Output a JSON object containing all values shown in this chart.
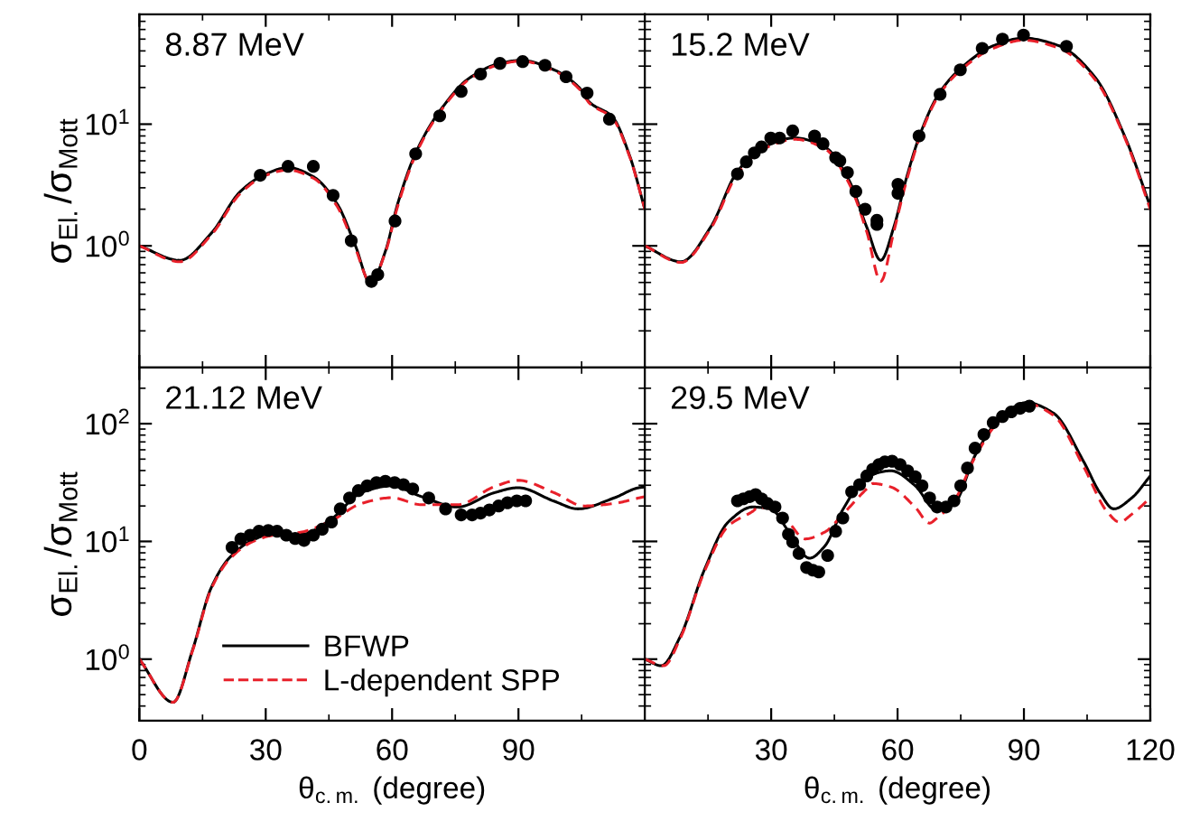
{
  "chart_data": [
    {
      "type": "line",
      "annotations": [
        "8.87 MeV"
      ],
      "ylabel": "σ$_{El.}$/σ$_{Mott}$",
      "log": "y",
      "grid": false,
      "tick_labels": "y",
      "xlim": [
        0,
        120
      ],
      "xticks": [
        0,
        30,
        60,
        90
      ],
      "ylim": [
        0.1,
        80
      ],
      "yticks": [
        {
          "value": 1,
          "label": "10$^{0}$"
        },
        {
          "value": 10,
          "label": "10$^{1}$"
        }
      ],
      "series": [
        {
          "color": "#000000",
          "line_style": "solid",
          "x": [
            0,
            9.6,
            17,
            24,
            30,
            35.3,
            41.3,
            47,
            51.3,
            54.9,
            58.4,
            61.3,
            65.6,
            71.3,
            78.4,
            85.6,
            90.6,
            98.4,
            104.4,
            107,
            112.3,
            116.4,
            120
          ],
          "values": [
            1.0,
            0.76,
            1.26,
            2.8,
            3.9,
            4.4,
            3.7,
            2.2,
            1.0,
            0.49,
            0.9,
            2.2,
            5.8,
            12.8,
            24,
            31.6,
            33.5,
            28,
            20,
            15,
            11.5,
            5.5,
            2.0
          ]
        },
        {
          "color": "#e8202a",
          "line_style": "dashed",
          "x": [
            0,
            9.6,
            17,
            24,
            30,
            35.3,
            41.3,
            47,
            51.3,
            54.9,
            58.4,
            61.3,
            65.6,
            71.3,
            78.4,
            85.6,
            90.6,
            98.4,
            104.4,
            107,
            112.3,
            116.4,
            120
          ],
          "values": [
            1.0,
            0.74,
            1.22,
            2.7,
            3.8,
            4.2,
            3.6,
            2.1,
            0.95,
            0.5,
            0.88,
            2.1,
            5.6,
            12.5,
            23.5,
            31,
            33,
            27.5,
            19.5,
            14.7,
            11.2,
            5.4,
            2.0
          ]
        },
        {
          "type": "scatter",
          "color": "#000000",
          "marker": "circle",
          "x": [
            28.7,
            35.3,
            41.3,
            46,
            50.3,
            55.1,
            56.6,
            60.7,
            65.6,
            71.3,
            76.4,
            81,
            85.6,
            91,
            96.3,
            101.3,
            106.3,
            111.6
          ],
          "values": [
            3.8,
            4.5,
            4.5,
            2.6,
            1.1,
            0.51,
            0.58,
            1.6,
            5.7,
            11.7,
            18.6,
            25.8,
            31.6,
            32.7,
            30.5,
            24.5,
            18,
            11
          ]
        }
      ]
    },
    {
      "type": "line",
      "annotations": [
        "15.2 MeV"
      ],
      "log": "y",
      "grid": false,
      "tick_labels": false,
      "xlim": [
        0,
        120
      ],
      "xticks": [
        30,
        60,
        90,
        120
      ],
      "ylim": [
        0.1,
        80
      ],
      "yticks": [
        1,
        10
      ],
      "series": [
        {
          "color": "#000000",
          "line_style": "solid",
          "x": [
            0,
            8.6,
            15.6,
            22,
            28.4,
            35.6,
            42.7,
            48.4,
            52.7,
            56,
            59.1,
            62,
            65.6,
            69.9,
            75.6,
            82.7,
            89.9,
            98.4,
            107,
            114.1,
            120
          ],
          "values": [
            1.0,
            0.74,
            1.42,
            4.1,
            6.5,
            7.7,
            6.5,
            3.5,
            1.42,
            0.76,
            1.42,
            3.5,
            8.7,
            18,
            30,
            44,
            51,
            44,
            24,
            7.7,
            2.1
          ]
        },
        {
          "color": "#e8202a",
          "line_style": "dashed",
          "x": [
            0,
            8.6,
            15.6,
            22,
            28.4,
            35.6,
            42.7,
            48.4,
            52.7,
            56,
            59.1,
            62,
            65.6,
            69.9,
            75.6,
            82.7,
            89.9,
            98.4,
            107,
            114.1,
            120
          ],
          "values": [
            1.0,
            0.73,
            1.38,
            3.9,
            6.3,
            7.5,
            6.3,
            3.3,
            1.3,
            0.51,
            1.3,
            3.3,
            8.4,
            17.5,
            29,
            42,
            49,
            42,
            23,
            7.5,
            2.0
          ]
        },
        {
          "type": "scatter",
          "color": "#000000",
          "marker": "circle",
          "x": [
            22,
            24.1,
            26,
            27.7,
            29.9,
            32,
            35.1,
            40.3,
            42.3,
            45.3,
            46.3,
            48.1,
            50.1,
            52.3,
            55.1,
            55.1,
            60.1,
            60.1,
            65.1,
            70.1,
            74.9,
            80.1,
            84.9,
            89.9,
            100.1
          ],
          "values": [
            3.9,
            4.9,
            5.8,
            6.5,
            7.7,
            7.7,
            8.8,
            8,
            6.9,
            5.3,
            5.0,
            4.0,
            2.8,
            2.0,
            1.62,
            1.5,
            3.2,
            2.7,
            8,
            17.6,
            28,
            42,
            50,
            54,
            43.6
          ]
        }
      ]
    },
    {
      "type": "line",
      "annotations": [
        "21.12 MeV"
      ],
      "ylabel": "σ$_{El.}$/σ$_{Mott}$",
      "xlabel": "θ$_{c.m.}$ (degree)",
      "log": "y",
      "grid": false,
      "legend": "bottom",
      "xlim": [
        0,
        120
      ],
      "xticks": [
        0,
        30,
        60,
        90
      ],
      "ylim": [
        0.3,
        300
      ],
      "yticks": [
        {
          "value": 1,
          "label": "10$^{0}$"
        },
        {
          "value": 10,
          "label": "10$^{1}$"
        },
        {
          "value": 100,
          "label": "10$^{2}$"
        }
      ],
      "series": [
        {
          "name": "BFWP",
          "color": "#000000",
          "line_style": "solid",
          "x": [
            0,
            8,
            12.7,
            17,
            21.3,
            27,
            31.3,
            38.4,
            45.6,
            52.7,
            59.9,
            67,
            75.6,
            84.1,
            89.9,
            98.4,
            104.1,
            112.7,
            118.6,
            120
          ],
          "values": [
            1.0,
            0.43,
            1.22,
            4.0,
            7.2,
            10.3,
            11.5,
            11.5,
            15.5,
            26,
            29.7,
            24,
            19.6,
            25.8,
            28.6,
            22,
            18.9,
            23.4,
            28.6,
            29
          ]
        },
        {
          "name": "L-dependent SPP",
          "color": "#e8202a",
          "line_style": "dashed",
          "x": [
            0,
            8,
            12.7,
            17,
            21.3,
            27,
            31.3,
            38.4,
            45.6,
            52.7,
            59.9,
            67,
            75.6,
            84.1,
            89.9,
            98.4,
            105.6,
            112.7,
            118.6,
            120
          ],
          "values": [
            1.0,
            0.43,
            1.2,
            3.9,
            7.0,
            10,
            11.2,
            12,
            15,
            21,
            23.5,
            20.5,
            20.5,
            29,
            33,
            26,
            20,
            21,
            23.4,
            24
          ]
        },
        {
          "type": "scatter",
          "color": "#000000",
          "marker": "circle",
          "x": [
            22,
            24.1,
            26.3,
            28.4,
            30.6,
            32.7,
            34.9,
            37,
            39.1,
            41.3,
            43.4,
            45.6,
            47.7,
            49.9,
            52,
            54.1,
            56.3,
            58.4,
            60.6,
            62.7,
            64.9,
            68.7,
            72.7,
            76.4,
            79,
            81,
            83.1,
            85.3,
            87.4,
            89.6,
            91.7
          ],
          "values": [
            8.9,
            10.5,
            11.3,
            12.2,
            12.4,
            12.2,
            11.3,
            10.6,
            10.2,
            11.3,
            12.7,
            14.6,
            18.9,
            23.4,
            27,
            29.7,
            31.6,
            32.4,
            31.6,
            30.4,
            27.9,
            23.4,
            18.9,
            16.8,
            16.8,
            17.4,
            18.5,
            20,
            21.3,
            22.1,
            22.1
          ]
        }
      ]
    },
    {
      "type": "line",
      "annotations": [
        "29.5 MeV"
      ],
      "xlabel": "θ$_{c.m.}$ (degree)",
      "log": "y",
      "grid": false,
      "tick_labels": "x",
      "xlim": [
        0,
        120
      ],
      "xticks": [
        30,
        60,
        90,
        120
      ],
      "ylim": [
        0.3,
        300
      ],
      "yticks": [
        1,
        10,
        100
      ],
      "series": [
        {
          "color": "#000000",
          "line_style": "solid",
          "x": [
            0,
            3.9,
            8.4,
            14.1,
            19.8,
            25.6,
            29.9,
            34.1,
            39.1,
            42.7,
            47,
            52.7,
            58.4,
            64.2,
            69.1,
            73.4,
            78.4,
            84.1,
            90.6,
            97,
            104.2,
            108,
            111.3,
            115.6,
            120
          ],
          "values": [
            1.0,
            0.88,
            1.55,
            5.7,
            14.6,
            19.6,
            18.9,
            12.2,
            7.2,
            9.1,
            18.6,
            35.4,
            39.8,
            29.7,
            18.6,
            20.9,
            53.7,
            109,
            151,
            123,
            47.5,
            26,
            18.9,
            23.4,
            36
          ]
        },
        {
          "color": "#e8202a",
          "line_style": "dashed",
          "x": [
            0,
            4.5,
            8.4,
            14.1,
            19.8,
            25.6,
            27,
            29.9,
            34.1,
            38,
            42.7,
            47,
            52.7,
            54.1,
            58.4,
            64.2,
            67.6,
            69.1,
            73.4,
            78.4,
            84.1,
            90.6,
            97,
            104.2,
            109.7,
            112.7,
            115.6,
            120
          ],
          "values": [
            1.0,
            0.88,
            1.5,
            5.5,
            13.5,
            18,
            19.5,
            19,
            14.5,
            10.5,
            12,
            17,
            28,
            31,
            29,
            19.5,
            14.3,
            15.5,
            22,
            52,
            105,
            148,
            118,
            43,
            18,
            14.6,
            17,
            23.4
          ]
        },
        {
          "type": "scatter",
          "color": "#000000",
          "marker": "circle",
          "x": [
            22,
            23.4,
            24.9,
            26.3,
            27.7,
            29.1,
            30.9,
            32.7,
            34.1,
            35.1,
            36.6,
            38.4,
            39.9,
            41.3,
            43.4,
            45.3,
            47,
            49.1,
            51,
            52.7,
            54.1,
            55.6,
            57,
            58.7,
            60.6,
            62.4,
            64.2,
            65.8,
            67.6,
            69.4,
            71.5,
            73.4,
            75,
            76.6,
            78.4,
            80.5,
            82.7,
            84.9,
            87,
            89.1,
            91.3
          ],
          "values": [
            22.1,
            23,
            24,
            25,
            23,
            21,
            19.6,
            15.8,
            11.5,
            9.9,
            7.9,
            6.0,
            5.7,
            5.5,
            7.6,
            12.2,
            15.8,
            26.4,
            30.4,
            36,
            41,
            45,
            47.5,
            48,
            45,
            39.8,
            35.4,
            29.7,
            23.4,
            19.6,
            19.6,
            22.1,
            29.7,
            42,
            62,
            81,
            102,
            115,
            126,
            135,
            141
          ]
        }
      ]
    }
  ]
}
